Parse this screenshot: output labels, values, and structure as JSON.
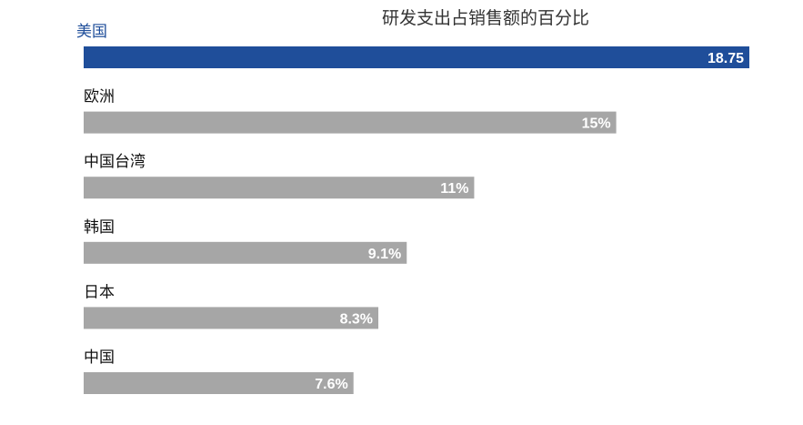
{
  "chart_data": {
    "type": "bar",
    "orientation": "horizontal",
    "title": "研发支出占销售额的百分比",
    "categories": [
      "美国",
      "欧洲",
      "中国台湾",
      "韩国",
      "日本",
      "中国"
    ],
    "values": [
      18.75,
      15,
      11,
      9.1,
      8.3,
      7.6
    ],
    "value_labels": [
      "18.75",
      "15%",
      "11%",
      "9.1%",
      "8.3%",
      "7.6%"
    ],
    "xlim": [
      0,
      18.75
    ],
    "grid": false,
    "legend": "none",
    "colors": {
      "highlight": "#1f4e9a",
      "default": "#a6a6a6",
      "highlight_label": "#1f4e9a",
      "label": "#111111",
      "value_label": "#ffffff"
    }
  }
}
